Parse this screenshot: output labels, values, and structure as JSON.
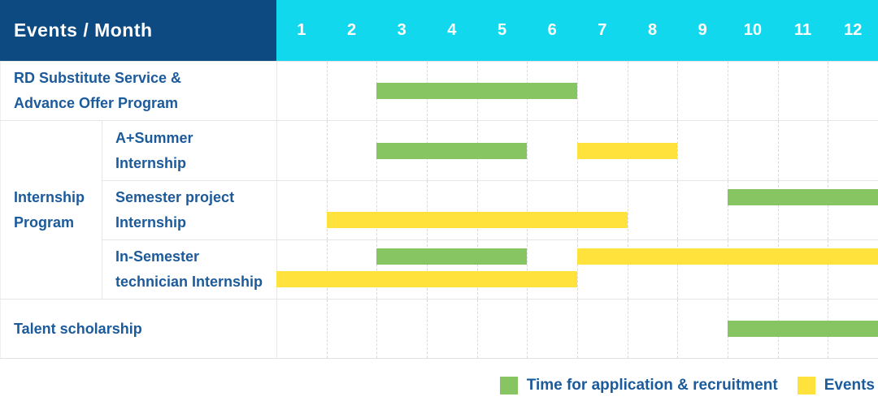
{
  "header": {
    "title": "Events / Month",
    "months": [
      "1",
      "2",
      "3",
      "4",
      "5",
      "6",
      "7",
      "8",
      "9",
      "10",
      "11",
      "12"
    ]
  },
  "group": {
    "label": "Internship\nProgram"
  },
  "legend": {
    "items": [
      {
        "label": "Time for application & recruitment",
        "color_key": "green",
        "color": "#87C562"
      },
      {
        "label": "Events",
        "color_key": "yellow",
        "color": "#FFE23C"
      }
    ]
  },
  "colors": {
    "header_bg": "#0D4A81",
    "months_bg": "#12D8EE",
    "bar_green": "#87C562",
    "bar_yellow": "#FFE23C",
    "label_text": "#1B5A9B",
    "header_text": "#FFFFFF",
    "grid_line": "#E6E6E6"
  },
  "chart_data": {
    "type": "gantt",
    "title": "Events / Month",
    "x_axis": {
      "label": "Month",
      "ticks": [
        1,
        2,
        3,
        4,
        5,
        6,
        7,
        8,
        9,
        10,
        11,
        12
      ],
      "range": [
        1,
        12
      ]
    },
    "series_legend": [
      {
        "name": "Time for application & recruitment",
        "color": "#87C562"
      },
      {
        "name": "Events",
        "color": "#FFE23C"
      }
    ],
    "rows": [
      {
        "label": "RD Substitute Service &\nAdvance Offer Program",
        "group": null,
        "bars": [
          {
            "series": "Time for application & recruitment",
            "color": "green",
            "start_month": 3,
            "end_month": 6,
            "level": "center"
          }
        ]
      },
      {
        "label": "A+Summer\nInternship",
        "group": "Internship Program",
        "bars": [
          {
            "series": "Time for application & recruitment",
            "color": "green",
            "start_month": 3,
            "end_month": 5,
            "level": "center"
          },
          {
            "series": "Events",
            "color": "yellow",
            "start_month": 7,
            "end_month": 8,
            "level": "center"
          }
        ]
      },
      {
        "label": "Semester project\nInternship",
        "group": "Internship Program",
        "bars": [
          {
            "series": "Time for application & recruitment",
            "color": "green",
            "start_month": 10,
            "end_month": 12,
            "level": "upper"
          },
          {
            "series": "Events",
            "color": "yellow",
            "start_month": 2,
            "end_month": 7,
            "level": "lower"
          }
        ]
      },
      {
        "label": "In-Semester\ntechnician Internship",
        "group": "Internship Program",
        "bars": [
          {
            "series": "Time for application & recruitment",
            "color": "green",
            "start_month": 3,
            "end_month": 5,
            "level": "upper"
          },
          {
            "series": "Events",
            "color": "yellow",
            "start_month": 7,
            "end_month": 12,
            "level": "upper"
          },
          {
            "series": "Events",
            "color": "yellow",
            "start_month": 1,
            "end_month": 6,
            "level": "lower"
          }
        ]
      },
      {
        "label": "Talent scholarship",
        "group": null,
        "bars": [
          {
            "series": "Time for application & recruitment",
            "color": "green",
            "start_month": 10,
            "end_month": 12,
            "level": "center"
          }
        ]
      }
    ]
  }
}
